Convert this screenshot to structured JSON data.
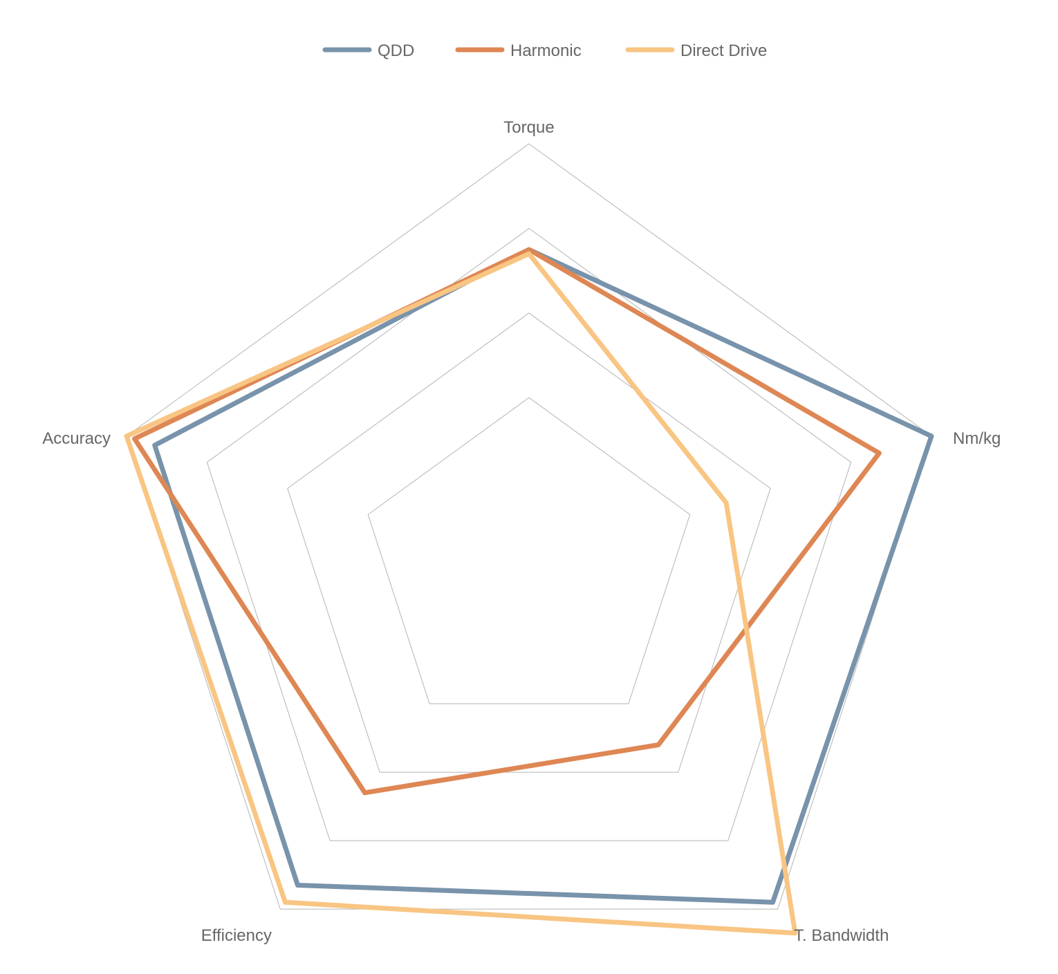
{
  "chart_data": {
    "type": "radar",
    "title": "",
    "axes": [
      "Torque",
      "Nm/kg",
      "T. Bandwidth",
      "Efficiency",
      "Accuracy"
    ],
    "range": [
      0,
      10
    ],
    "grid_levels": [
      4,
      6,
      8,
      10
    ],
    "grid": true,
    "legend_position": "top-center",
    "series": [
      {
        "name": "QDD",
        "color": "#7893ab",
        "values": [
          7.5,
          10.0,
          9.8,
          9.3,
          9.3
        ]
      },
      {
        "name": "Harmonic",
        "color": "#de8754",
        "values": [
          7.5,
          8.7,
          5.2,
          6.6,
          9.8
        ]
      },
      {
        "name": "Direct Drive",
        "color": "#f9c583",
        "values": [
          7.4,
          4.9,
          10.7,
          9.8,
          10.0
        ]
      }
    ]
  }
}
